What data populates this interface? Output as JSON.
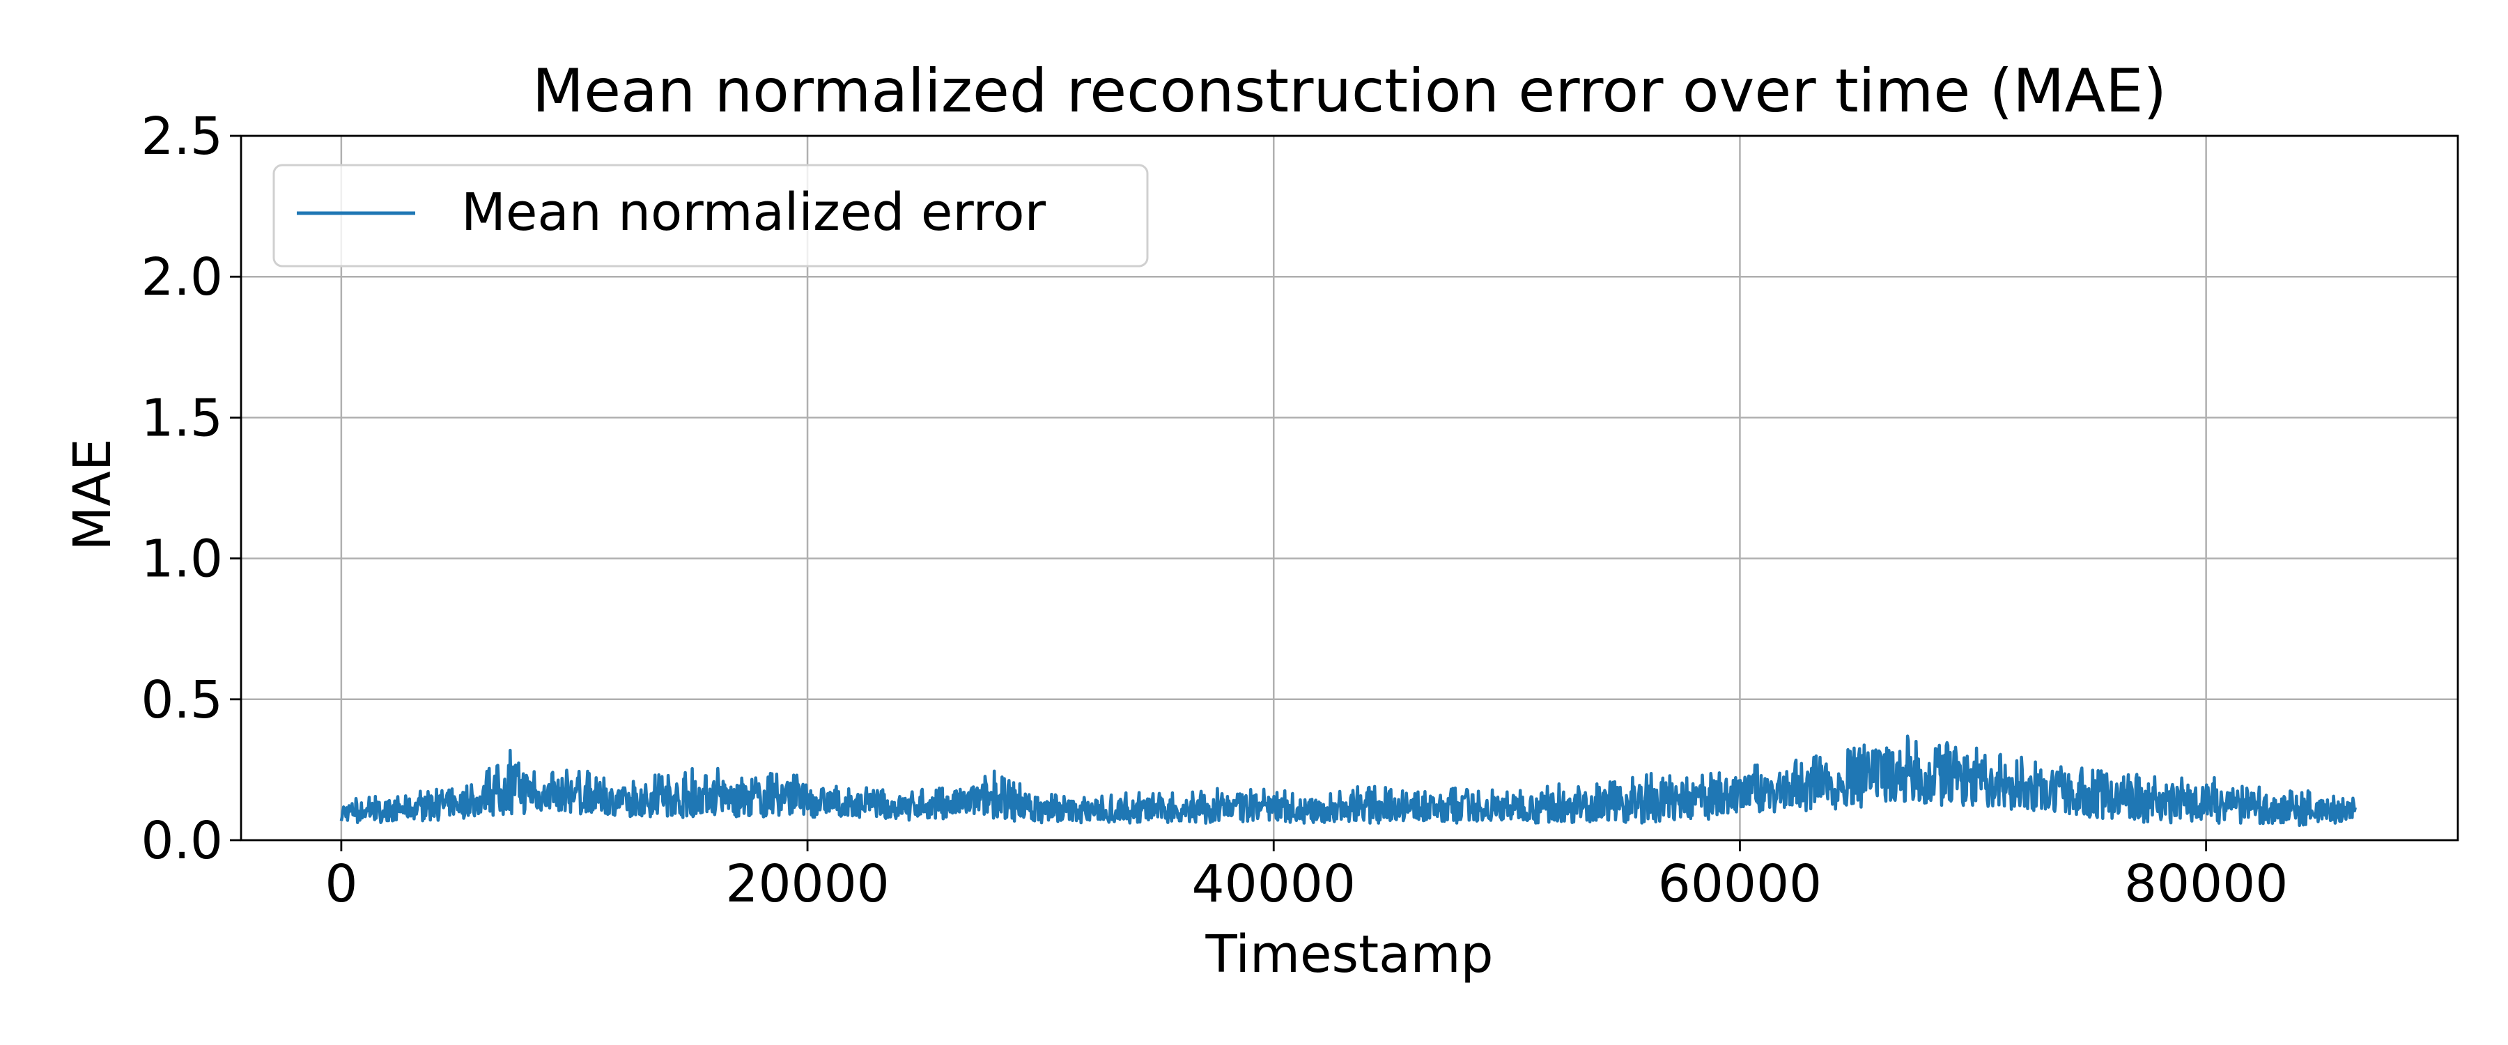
{
  "chart_data": {
    "type": "line",
    "title": "Mean normalized reconstruction error over time (MAE)",
    "xlabel": "Timestamp",
    "ylabel": "MAE",
    "xlim": [
      -4300,
      90800
    ],
    "ylim": [
      0.0,
      2.5
    ],
    "x_ticks": [
      0,
      20000,
      40000,
      60000,
      80000
    ],
    "x_tick_labels": [
      "0",
      "20000",
      "40000",
      "60000",
      "80000"
    ],
    "y_ticks": [
      0.0,
      0.5,
      1.0,
      1.5,
      2.0,
      2.5
    ],
    "y_tick_labels": [
      "0.0",
      "0.5",
      "1.0",
      "1.5",
      "2.0",
      "2.5"
    ],
    "grid": true,
    "legend_position": "top-left",
    "series": [
      {
        "name": "Mean normalized error",
        "color": "#1f77b4",
        "x_range": [
          0,
          86400
        ],
        "envelope": {
          "x": [
            0,
            2000,
            4000,
            6000,
            6700,
            7500,
            8500,
            10000,
            12000,
            14000,
            15800,
            17000,
            19000,
            20000,
            22000,
            24000,
            26000,
            28000,
            30000,
            32000,
            34000,
            36000,
            38000,
            40000,
            42000,
            44000,
            46000,
            48000,
            50000,
            52000,
            54000,
            56000,
            58000,
            60000,
            62000,
            64000,
            66400,
            68000,
            69000,
            70000,
            72000,
            74000,
            76000,
            78000,
            80000,
            82000,
            84000,
            86400
          ],
          "low": [
            0.06,
            0.06,
            0.07,
            0.08,
            0.09,
            0.09,
            0.09,
            0.09,
            0.08,
            0.08,
            0.08,
            0.08,
            0.08,
            0.08,
            0.08,
            0.07,
            0.07,
            0.07,
            0.06,
            0.06,
            0.06,
            0.06,
            0.06,
            0.06,
            0.06,
            0.06,
            0.06,
            0.06,
            0.06,
            0.06,
            0.06,
            0.06,
            0.07,
            0.08,
            0.1,
            0.11,
            0.12,
            0.12,
            0.12,
            0.11,
            0.1,
            0.08,
            0.07,
            0.06,
            0.06,
            0.06,
            0.05,
            0.06
          ],
          "high": [
            0.15,
            0.16,
            0.18,
            0.21,
            0.31,
            0.33,
            0.23,
            0.26,
            0.21,
            0.24,
            0.27,
            0.22,
            0.25,
            0.22,
            0.19,
            0.18,
            0.19,
            0.25,
            0.17,
            0.16,
            0.17,
            0.17,
            0.19,
            0.18,
            0.16,
            0.2,
            0.17,
            0.19,
            0.18,
            0.2,
            0.2,
            0.24,
            0.23,
            0.26,
            0.28,
            0.31,
            0.38,
            0.36,
            0.41,
            0.33,
            0.3,
            0.27,
            0.24,
            0.23,
            0.24,
            0.19,
            0.18,
            0.15
          ]
        }
      }
    ]
  }
}
